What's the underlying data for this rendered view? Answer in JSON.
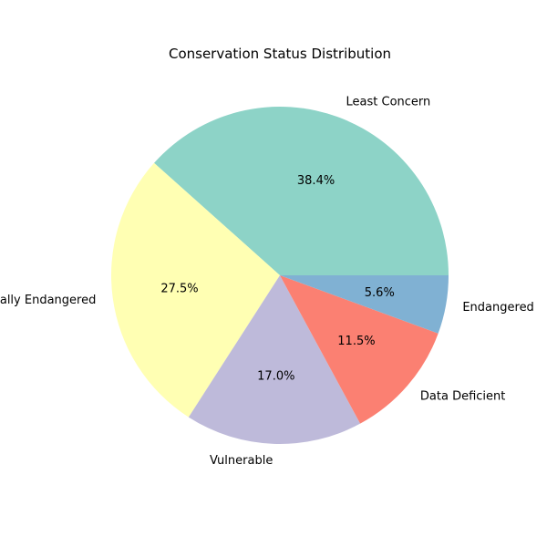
{
  "chart_data": {
    "type": "pie",
    "title": "Conservation Status Distribution",
    "labels": [
      "Least Concern",
      "Critically Endangered",
      "Vulnerable",
      "Data Deficient",
      "Endangered"
    ],
    "values": [
      38.4,
      27.5,
      17.0,
      11.5,
      5.6
    ],
    "value_labels": [
      "38.4%",
      "27.5%",
      "17.0%",
      "11.5%",
      "5.6%"
    ],
    "colors": [
      "#8dd3c7",
      "#ffffb3",
      "#bebada",
      "#fb8072",
      "#80b1d3"
    ],
    "start_angle_deg": 0,
    "direction": "counterclockwise"
  }
}
